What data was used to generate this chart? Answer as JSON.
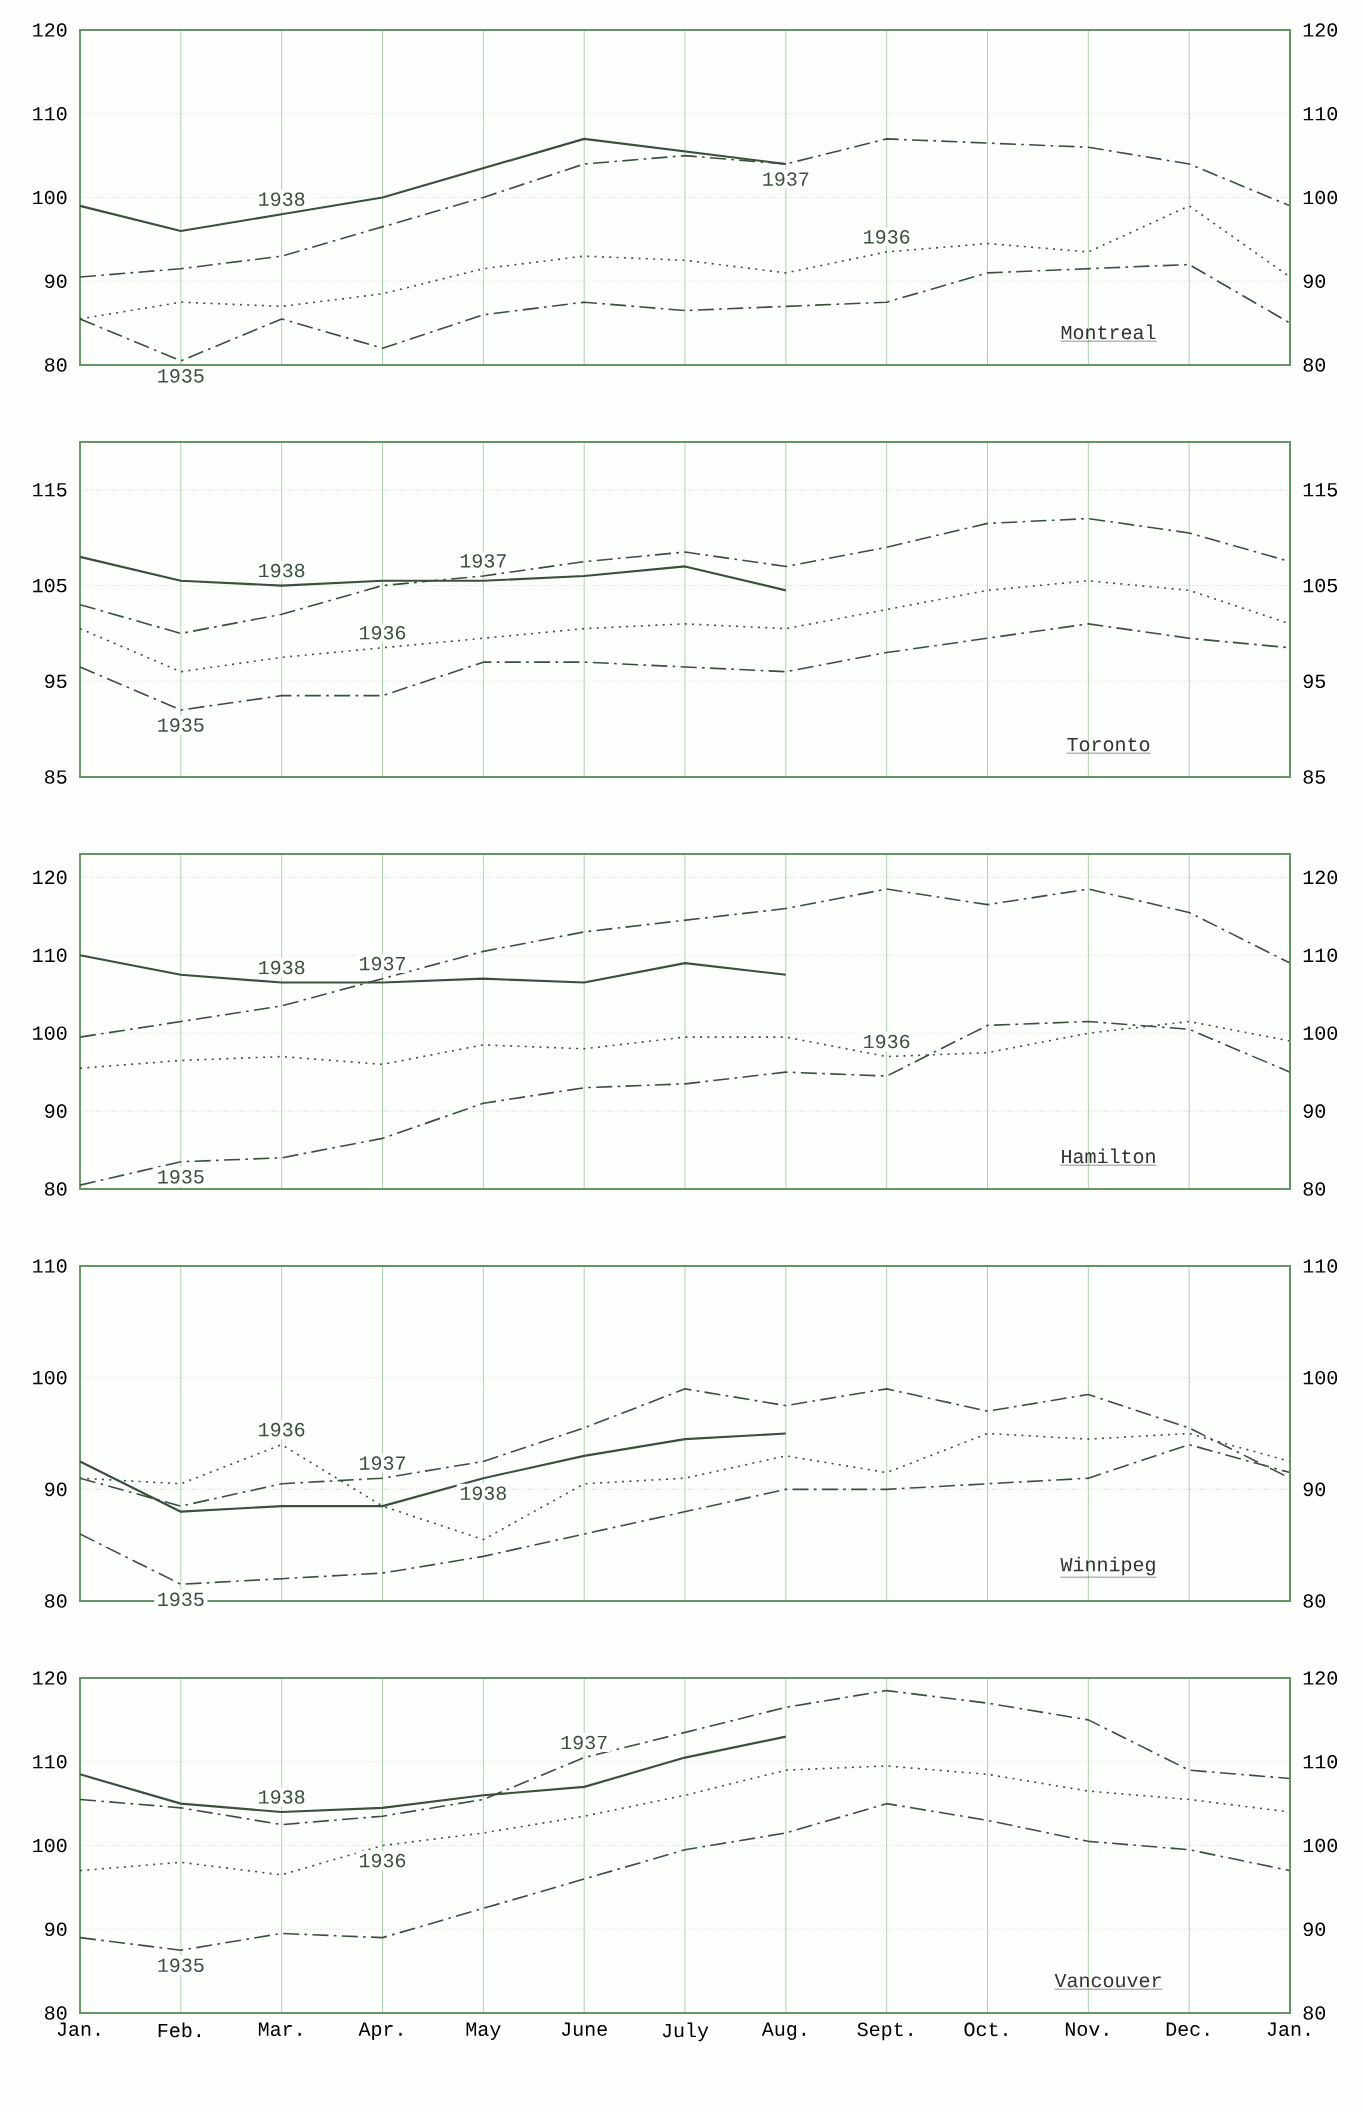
{
  "chart_data": [
    {
      "type": "line",
      "title": "Montreal",
      "categories": [
        null,
        null,
        null,
        null,
        null,
        null,
        null,
        null,
        null,
        null,
        null,
        null,
        null
      ],
      "ylim": [
        80,
        120
      ],
      "yticks": [
        80,
        90,
        100,
        110,
        120
      ],
      "y2lim": [
        80,
        120
      ],
      "y2ticks": [
        80,
        90,
        100,
        110,
        120
      ],
      "grid": true,
      "tick_labels": "y",
      "series": [
        {
          "name": "1935",
          "color": "#3c4f3c",
          "line_style": "dashed",
          "values": [
            85.5,
            80.5,
            85.5,
            82,
            86,
            87.5,
            86.5,
            87,
            87.5,
            91,
            91.5,
            92,
            85
          ]
        },
        {
          "name": "1936",
          "color": "#3c4f3c",
          "line_style": "dotted",
          "values": [
            85.5,
            87.5,
            87,
            88.5,
            91.5,
            93,
            92.5,
            91,
            93.5,
            94.5,
            93.5,
            99,
            90.5
          ]
        },
        {
          "name": "1937",
          "color": "#3c4f3c",
          "line_style": "dashed",
          "values": [
            90.5,
            91.5,
            93,
            96.5,
            100,
            104,
            105,
            104,
            107,
            106.5,
            106,
            104,
            99
          ]
        },
        {
          "name": "1938",
          "color": "#3c4f3c",
          "line_style": "solid",
          "values": [
            99,
            96,
            98,
            100,
            103.5,
            107,
            105.5,
            104,
            null,
            null,
            null,
            null,
            null
          ]
        }
      ]
    },
    {
      "type": "line",
      "title": "Toronto",
      "categories": [
        null,
        null,
        null,
        null,
        null,
        null,
        null,
        null,
        null,
        null,
        null,
        null,
        null
      ],
      "ylim": [
        85,
        120
      ],
      "yticks": [
        85,
        95,
        105,
        115
      ],
      "y2lim": [
        85,
        120
      ],
      "y2ticks": [
        85,
        95,
        105,
        115
      ],
      "grid": true,
      "tick_labels": "y",
      "series": [
        {
          "name": "1935",
          "color": "#3c4f3c",
          "line_style": "dashed",
          "values": [
            96.5,
            92,
            93.5,
            93.5,
            97,
            97,
            96.5,
            96,
            98,
            99.5,
            101,
            99.5,
            98.5
          ]
        },
        {
          "name": "1936",
          "color": "#3c4f3c",
          "line_style": "dotted",
          "values": [
            100.5,
            96,
            97.5,
            98.5,
            99.5,
            100.5,
            101,
            100.5,
            102.5,
            104.5,
            105.5,
            104.5,
            101
          ]
        },
        {
          "name": "1937",
          "color": "#3c4f3c",
          "line_style": "dashed",
          "values": [
            103,
            100,
            102,
            105,
            106,
            107.5,
            108.5,
            107,
            109,
            111.5,
            112,
            110.5,
            107.5
          ]
        },
        {
          "name": "1938",
          "color": "#3c4f3c",
          "line_style": "solid",
          "values": [
            108,
            105.5,
            105,
            105.5,
            105.5,
            106,
            107,
            104.5,
            null,
            null,
            null,
            null,
            null
          ]
        }
      ]
    },
    {
      "type": "line",
      "title": "Hamilton",
      "categories": [
        null,
        null,
        null,
        null,
        null,
        null,
        null,
        null,
        null,
        null,
        null,
        null,
        null
      ],
      "ylim": [
        80,
        123
      ],
      "yticks": [
        80,
        90,
        100,
        110,
        120
      ],
      "y2lim": [
        80,
        123
      ],
      "y2ticks": [
        80,
        90,
        100,
        110,
        120
      ],
      "grid": true,
      "tick_labels": "y",
      "series": [
        {
          "name": "1935",
          "color": "#3c4f3c",
          "line_style": "dashed",
          "values": [
            80.5,
            83.5,
            84,
            86.5,
            91,
            93,
            93.5,
            95,
            94.5,
            101,
            101.5,
            100.5,
            95
          ]
        },
        {
          "name": "1936",
          "color": "#3c4f3c",
          "line_style": "dotted",
          "values": [
            95.5,
            96.5,
            97,
            96,
            98.5,
            98,
            99.5,
            99.5,
            97,
            97.5,
            100,
            101.5,
            99
          ]
        },
        {
          "name": "1937",
          "color": "#3c4f3c",
          "line_style": "dashed",
          "values": [
            99.5,
            101.5,
            103.5,
            107,
            110.5,
            113,
            114.5,
            116,
            118.5,
            116.5,
            118.5,
            115.5,
            109
          ]
        },
        {
          "name": "1938",
          "color": "#3c4f3c",
          "line_style": "solid",
          "values": [
            110,
            107.5,
            106.5,
            106.5,
            107,
            106.5,
            109,
            107.5,
            null,
            null,
            null,
            null,
            null
          ]
        }
      ]
    },
    {
      "type": "line",
      "title": "Winnipeg",
      "categories": [
        null,
        null,
        null,
        null,
        null,
        null,
        null,
        null,
        null,
        null,
        null,
        null,
        null
      ],
      "ylim": [
        80,
        110
      ],
      "yticks": [
        80,
        90,
        100,
        110
      ],
      "y2lim": [
        80,
        110
      ],
      "y2ticks": [
        80,
        90,
        100,
        110
      ],
      "grid": true,
      "tick_labels": "y",
      "series": [
        {
          "name": "1935",
          "color": "#3c4f3c",
          "line_style": "dashed",
          "values": [
            86,
            81.5,
            82,
            82.5,
            84,
            86,
            88,
            90,
            90,
            90.5,
            91,
            94,
            91.5
          ]
        },
        {
          "name": "1936",
          "color": "#3c4f3c",
          "line_style": "dotted",
          "values": [
            91,
            90.5,
            94,
            88.5,
            85.5,
            90.5,
            91,
            93,
            91.5,
            95,
            94.5,
            95,
            92.5
          ]
        },
        {
          "name": "1937",
          "color": "#3c4f3c",
          "line_style": "dashed",
          "values": [
            91,
            88.5,
            90.5,
            91,
            92.5,
            95.5,
            99,
            97.5,
            99,
            97,
            98.5,
            95.5,
            91
          ]
        },
        {
          "name": "1938",
          "color": "#3c4f3c",
          "line_style": "solid",
          "values": [
            92.5,
            88,
            88.5,
            88.5,
            91,
            93,
            94.5,
            95,
            null,
            null,
            null,
            null,
            null
          ]
        }
      ]
    },
    {
      "type": "line",
      "title": "Vancouver",
      "categories": [
        "Jan.",
        "Feb.",
        "Mar.",
        "Apr.",
        "May",
        "June",
        "July",
        "Aug.",
        "Sept.",
        "Oct.",
        "Nov.",
        "Dec.",
        "Jan."
      ],
      "ylim": [
        80,
        120
      ],
      "yticks": [
        80,
        90,
        100,
        110,
        120
      ],
      "y2lim": [
        80,
        120
      ],
      "y2ticks": [
        80,
        90,
        100,
        110,
        120
      ],
      "grid": true,
      "series": [
        {
          "name": "1935",
          "color": "#3c4f3c",
          "line_style": "dashed",
          "values": [
            89,
            87.5,
            89.5,
            89,
            92.5,
            96,
            99.5,
            101.5,
            105,
            103,
            100.5,
            99.5,
            97
          ]
        },
        {
          "name": "1936",
          "color": "#3c4f3c",
          "line_style": "dotted",
          "values": [
            97,
            98,
            96.5,
            100,
            101.5,
            103.5,
            106,
            109,
            109.5,
            108.5,
            106.5,
            105.5,
            104
          ]
        },
        {
          "name": "1937",
          "color": "#3c4f3c",
          "line_style": "dashed",
          "values": [
            105.5,
            104.5,
            102.5,
            103.5,
            105.5,
            110.5,
            113.5,
            116.5,
            118.5,
            117,
            115,
            109,
            108
          ]
        },
        {
          "name": "1938",
          "color": "#3c4f3c",
          "line_style": "solid",
          "values": [
            108.5,
            105,
            104,
            104.5,
            106,
            107,
            110.5,
            113,
            null,
            null,
            null,
            null,
            null
          ]
        }
      ]
    }
  ]
}
